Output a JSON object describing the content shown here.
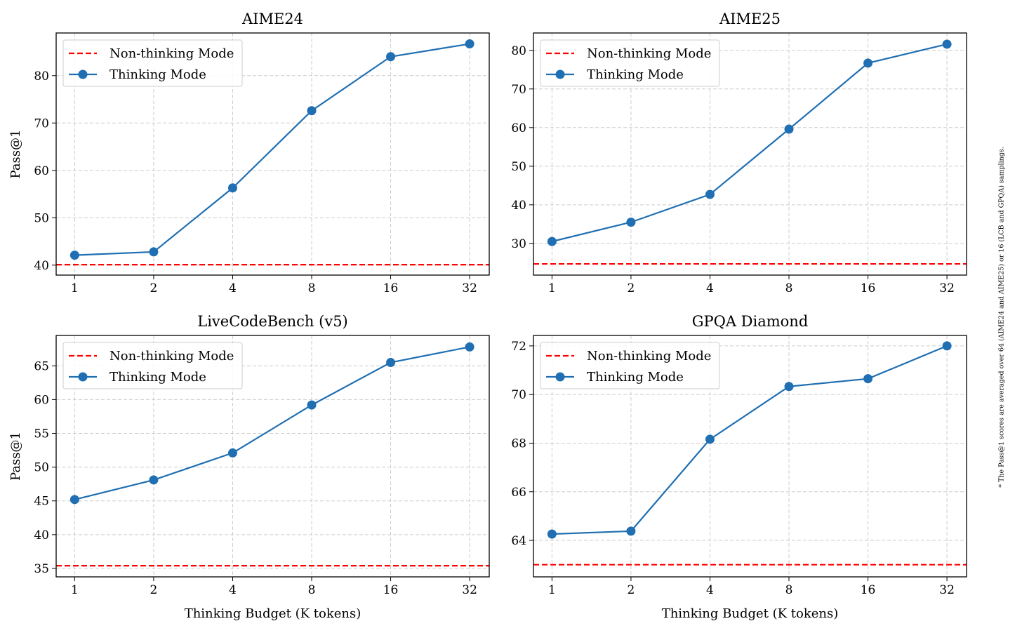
{
  "chart_data": [
    {
      "type": "line",
      "title": "AIME24",
      "ylabel": "Pass@1",
      "log_x": true,
      "grid": true,
      "legend": "upper left",
      "x": [
        1,
        2,
        4,
        8,
        16,
        32
      ],
      "xlim": [
        0.85,
        38
      ],
      "xticks": [
        1,
        2,
        4,
        8,
        16,
        32
      ],
      "ylim": [
        37.9,
        89.0
      ],
      "yticks": [
        40,
        50,
        60,
        70,
        80
      ],
      "baselines": [
        {
          "name": "Non-thinking Mode",
          "color": "#ff0000",
          "value": 40.1
        }
      ],
      "series": [
        {
          "name": "Thinking Mode",
          "color": "#1f6fb2",
          "values": [
            42.1,
            42.8,
            56.3,
            72.6,
            84.0,
            86.7
          ]
        }
      ]
    },
    {
      "type": "line",
      "title": "AIME25",
      "log_x": true,
      "grid": true,
      "legend": "upper left",
      "x": [
        1,
        2,
        4,
        8,
        16,
        32
      ],
      "xlim": [
        0.85,
        38
      ],
      "xticks": [
        1,
        2,
        4,
        8,
        16,
        32
      ],
      "ylim": [
        21.8,
        84.5
      ],
      "yticks": [
        30,
        40,
        50,
        60,
        70,
        80
      ],
      "baselines": [
        {
          "name": "Non-thinking Mode",
          "color": "#ff0000",
          "value": 24.7
        }
      ],
      "series": [
        {
          "name": "Thinking Mode",
          "color": "#1f6fb2",
          "values": [
            30.5,
            35.5,
            42.7,
            59.6,
            76.7,
            81.6
          ]
        }
      ]
    },
    {
      "type": "line",
      "title": "LiveCodeBench (v5)",
      "ylabel": "Pass@1",
      "xlabel": "Thinking Budget (K tokens)",
      "log_x": true,
      "grid": true,
      "legend": "upper left",
      "x": [
        1,
        2,
        4,
        8,
        16,
        32
      ],
      "xlim": [
        0.85,
        38
      ],
      "xticks": [
        1,
        2,
        4,
        8,
        16,
        32
      ],
      "ylim": [
        33.75,
        69.5
      ],
      "yticks": [
        35,
        40,
        45,
        50,
        55,
        60,
        65
      ],
      "baselines": [
        {
          "name": "Non-thinking Mode",
          "color": "#ff0000",
          "value": 35.4
        }
      ],
      "series": [
        {
          "name": "Thinking Mode",
          "color": "#1f6fb2",
          "values": [
            45.2,
            48.1,
            52.1,
            59.2,
            65.5,
            67.8
          ]
        }
      ]
    },
    {
      "type": "line",
      "title": "GPQA Diamond",
      "xlabel": "Thinking Budget (K tokens)",
      "log_x": true,
      "grid": true,
      "legend": "upper left",
      "x": [
        1,
        2,
        4,
        8,
        16,
        32
      ],
      "xlim": [
        0.85,
        38
      ],
      "xticks": [
        1,
        2,
        4,
        8,
        16,
        32
      ],
      "ylim": [
        62.5,
        72.43
      ],
      "yticks": [
        64,
        66,
        68,
        70,
        72
      ],
      "baselines": [
        {
          "name": "Non-thinking Mode",
          "color": "#ff0000",
          "value": 63.0
        }
      ],
      "series": [
        {
          "name": "Thinking Mode",
          "color": "#1f6fb2",
          "values": [
            64.26,
            64.38,
            68.16,
            70.33,
            70.65,
            72.0
          ]
        }
      ]
    }
  ],
  "footnote": "* The Pass@1 scores are averaged over 64 (AIME24 and AIME25) or 16 (LCB and GPQA) samplings."
}
